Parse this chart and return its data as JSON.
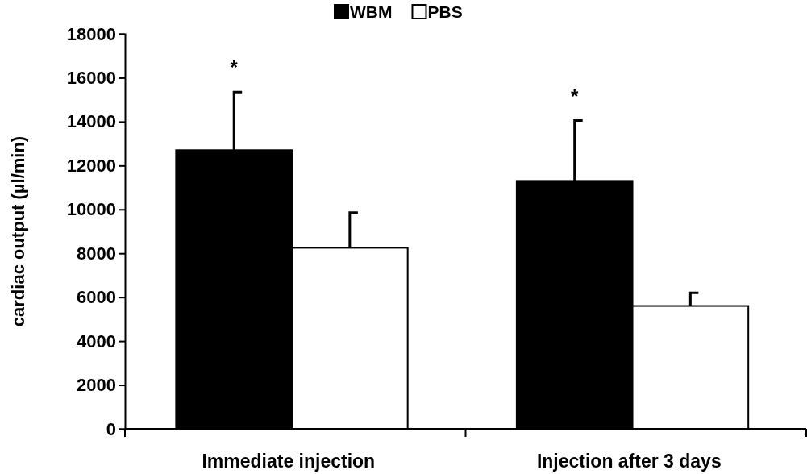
{
  "chart_data": {
    "type": "bar",
    "ylabel": "cardiac output (µl/min)",
    "categories": [
      "Immediate injection",
      "Injection after 3 days"
    ],
    "series": [
      {
        "name": "WBM",
        "color": "#000000",
        "values": [
          12700,
          11300
        ],
        "errors": [
          [
            12700,
            15350
          ],
          [
            11300,
            14050
          ]
        ]
      },
      {
        "name": "PBS",
        "color": "#ffffff",
        "values": [
          8250,
          5600
        ],
        "errors": [
          [
            8250,
            9850
          ],
          [
            5600,
            6200
          ]
        ]
      }
    ],
    "ylim": [
      0,
      18000
    ],
    "yticks": [
      0,
      2000,
      4000,
      6000,
      8000,
      10000,
      12000,
      14000,
      16000,
      18000
    ],
    "grid": false,
    "legend": "top",
    "annotations": [
      "*",
      "*"
    ]
  }
}
